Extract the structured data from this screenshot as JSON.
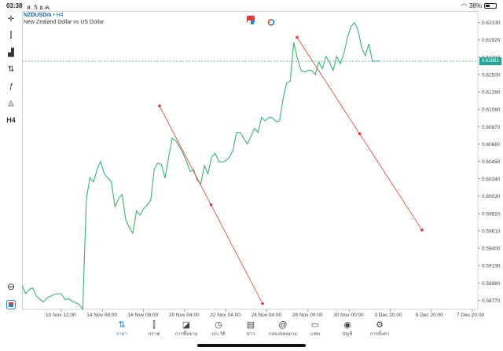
{
  "status": {
    "time": "03:38",
    "date": "ส. 5 ธ.ค.",
    "battery": "38%",
    "battery_level": 0.38
  },
  "header": {
    "symbol": "NZDUSDm",
    "timeframe": "• H4",
    "description": "New Zealand Dollar vs US Dollar"
  },
  "left_toolbar": {
    "items": [
      {
        "name": "crosshair-icon",
        "glyph": "✛"
      },
      {
        "name": "chart-type-icon",
        "glyph": "⫿"
      },
      {
        "name": "indicators-icon",
        "glyph": "▟"
      },
      {
        "name": "objects-icon",
        "glyph": "⇅"
      },
      {
        "name": "function-icon",
        "glyph": "ƒ"
      },
      {
        "name": "shapes-icon",
        "glyph": "◬"
      },
      {
        "name": "timeframe-label",
        "glyph": "H4"
      }
    ]
  },
  "colors": {
    "line": "#3cb371",
    "trend": "#e53935",
    "current_price": "#26a69a",
    "accent": "#1e88e5"
  },
  "current_price_label": "0.61661",
  "price_axis": [
    "0.62130",
    "0.61920",
    "0.61710",
    "0.61500",
    "0.61290",
    "0.61080",
    "0.60870",
    "0.60660",
    "0.60450",
    "0.60240",
    "0.60030",
    "0.59820",
    "0.59610",
    "0.59400",
    "0.59190",
    "0.58980",
    "0.58770"
  ],
  "time_axis": [
    "10 Nov 12:00",
    "14 Nov 08:00",
    "16 Nov 08:00",
    "20 Nov 04:00",
    "22 Nov 04:00",
    "24 Nov 04:00",
    "28 Nov 00:00",
    "30 Nov 00:00",
    "3 Dec 20:00",
    "5 Dec 20:00",
    "7 Dec 20:00"
  ],
  "chart_data": {
    "type": "line",
    "ylim": [
      0.5866,
      0.6225
    ],
    "series": [
      {
        "values": [
          0.5895,
          0.5885,
          0.589,
          0.5892,
          0.5882,
          0.5878,
          0.5875,
          0.588,
          0.5882,
          0.5884,
          0.5885,
          0.5885,
          0.5878,
          0.5879,
          0.5876,
          0.5874,
          0.5872,
          0.5866,
          0.6,
          0.6025,
          0.602,
          0.6035,
          0.6045,
          0.603,
          0.6025,
          0.602,
          0.599,
          0.6,
          0.6005,
          0.5975,
          0.5965,
          0.5958,
          0.5985,
          0.598,
          0.5988,
          0.5992,
          0.5998,
          0.6036,
          0.6043,
          0.6041,
          0.6025,
          0.605,
          0.6073,
          0.607,
          0.6063,
          0.6055,
          0.6045,
          0.6033,
          0.6035,
          0.6022,
          0.6018,
          0.604,
          0.603,
          0.605,
          0.6055,
          0.6045,
          0.6044,
          0.6046,
          0.605,
          0.6058,
          0.608,
          0.608,
          0.6073,
          0.6066,
          0.6075,
          0.6085,
          0.608,
          0.6098,
          0.6094,
          0.6098,
          0.6098,
          0.6093,
          0.6094,
          0.612,
          0.614,
          0.6142,
          0.6189,
          0.617,
          0.6155,
          0.6153,
          0.6155,
          0.6155,
          0.615,
          0.6165,
          0.6157,
          0.6172,
          0.6165,
          0.6155,
          0.6172,
          0.6163,
          0.6175,
          0.6195,
          0.6208,
          0.6213,
          0.6203,
          0.6182,
          0.6173,
          0.6187,
          0.6166,
          0.6166,
          0.6167
        ]
      }
    ],
    "trendlines": [
      {
        "from": [
          "20 Nov 00:00",
          0.6112
        ],
        "to": [
          "24 Nov 04:00",
          0.5873
        ]
      },
      {
        "from": [
          "28 Nov 00:00",
          0.6195
        ],
        "to": [
          "5 Dec 20:00",
          0.5962
        ]
      }
    ],
    "current_price": 0.61661,
    "grid": false
  },
  "tabs": [
    {
      "label": "ราคา",
      "icon": "quotes-icon",
      "glyph": "⇅",
      "active": true
    },
    {
      "label": "กราฟ",
      "icon": "chart-icon",
      "glyph": "⫿",
      "active": false
    },
    {
      "label": "การซื้อขาย",
      "icon": "trade-icon",
      "glyph": "◪",
      "active": false
    },
    {
      "label": "ประวัติ",
      "icon": "history-icon",
      "glyph": "◷",
      "active": false
    },
    {
      "label": "ข่าว",
      "icon": "news-icon",
      "glyph": "▤",
      "active": false
    },
    {
      "label": "กล่องจดหมาย",
      "icon": "mailbox-icon",
      "glyph": "@",
      "active": false
    },
    {
      "label": "แชท",
      "icon": "chat-icon",
      "glyph": "▭",
      "active": false
    },
    {
      "label": "บัญชี",
      "icon": "account-icon",
      "glyph": "◉",
      "active": false
    },
    {
      "label": "การตั้งค่า",
      "icon": "settings-icon",
      "glyph": "⚙",
      "active": false
    }
  ]
}
